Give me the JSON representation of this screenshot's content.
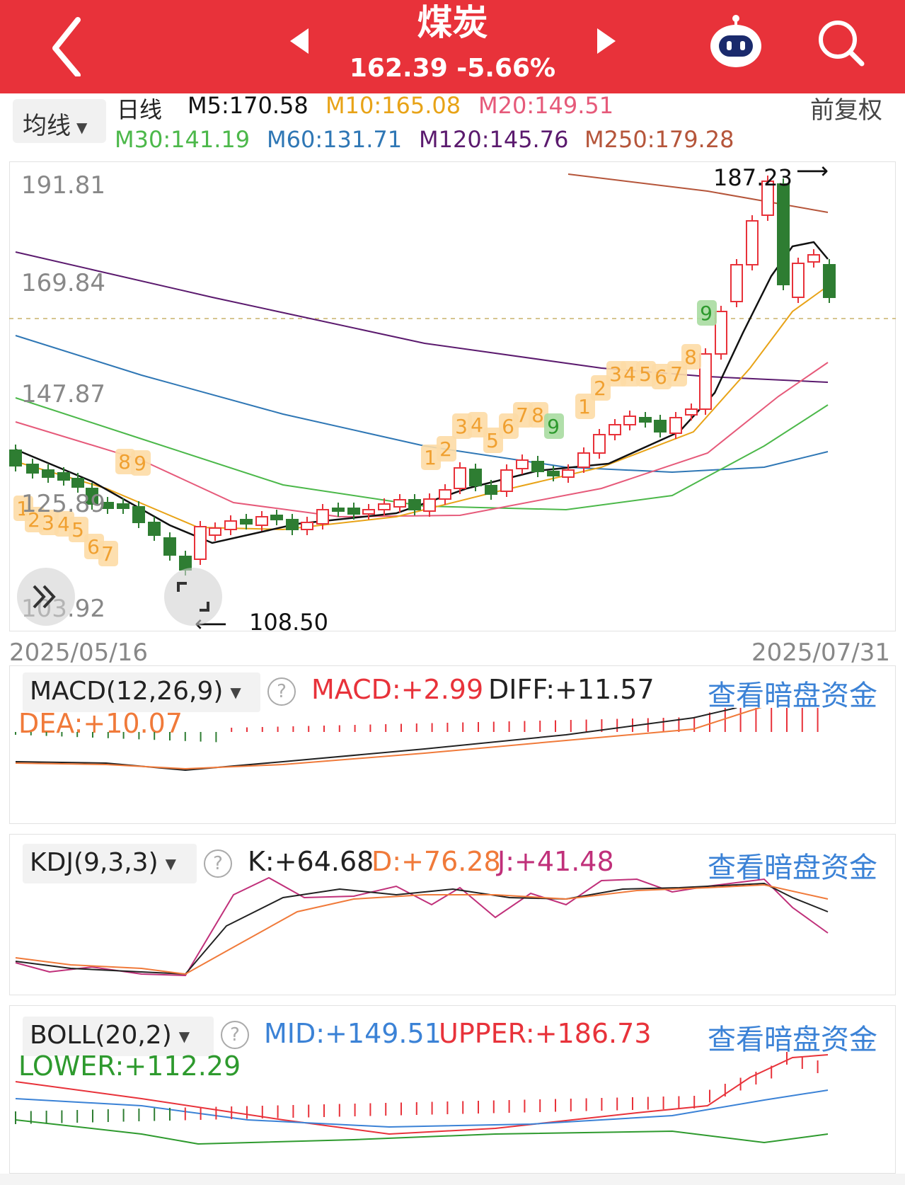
{
  "header": {
    "title": "煤炭",
    "price_line": "162.39 -5.66%",
    "bg_color": "#e8323a"
  },
  "ma_bar": {
    "selector_label": "均线",
    "period": "日线",
    "m5": "M5:170.58",
    "m10": "M10:165.08",
    "m20": "M20:149.51",
    "m30": "M30:141.19",
    "m60": "M60:131.71",
    "m120": "M120:145.76",
    "m250": "M250:179.28",
    "adjust": "前复权"
  },
  "main_chart": {
    "y_labels": [
      "191.81",
      "169.84",
      "147.87",
      "125.89",
      "103.92"
    ],
    "date_start": "2025/05/16",
    "date_end": "2025/07/31",
    "high_label": "187.23",
    "low_label": "108.50",
    "td_counts_a": [
      "1",
      "2",
      "3",
      "4",
      "5",
      "6",
      "7"
    ],
    "td_counts_b": [
      "8",
      "9"
    ],
    "td_counts_c": [
      "1",
      "2",
      "3",
      "4",
      "5",
      "6",
      "7",
      "8",
      "9"
    ],
    "td_counts_d": [
      "1",
      "2",
      "3",
      "4",
      "5",
      "6",
      "7",
      "8",
      "9"
    ]
  },
  "macd": {
    "selector_label": "MACD(12,26,9)",
    "macd_value": "MACD:+2.99",
    "diff_value": "DIFF:+11.57",
    "dea_value": "DEA:+10.07",
    "link": "查看暗盘资金"
  },
  "kdj": {
    "selector_label": "KDJ(9,3,3)",
    "k_value": "K:+64.68",
    "d_value": "D:+76.28",
    "j_value": "J:+41.48",
    "link": "查看暗盘资金"
  },
  "boll": {
    "selector_label": "BOLL(20,2)",
    "mid_value": "MID:+149.51",
    "upper_value": "UPPER:+186.73",
    "lower_value": "LOWER:+112.29",
    "link": "查看暗盘资金"
  },
  "colors": {
    "up": "#e8323a",
    "down": "#2e7d32",
    "m5": "#111111",
    "m10": "#e8a317",
    "m20": "#e65a7a",
    "m30": "#4cb84a",
    "m60": "#2f77b5",
    "m120": "#5b1a6e",
    "m250": "#b5553a"
  },
  "icons": [
    "back-arrow-icon",
    "prev-icon",
    "next-icon",
    "robot-icon",
    "search-icon",
    "expand-icon",
    "fullscreen-icon",
    "help-icon"
  ]
}
